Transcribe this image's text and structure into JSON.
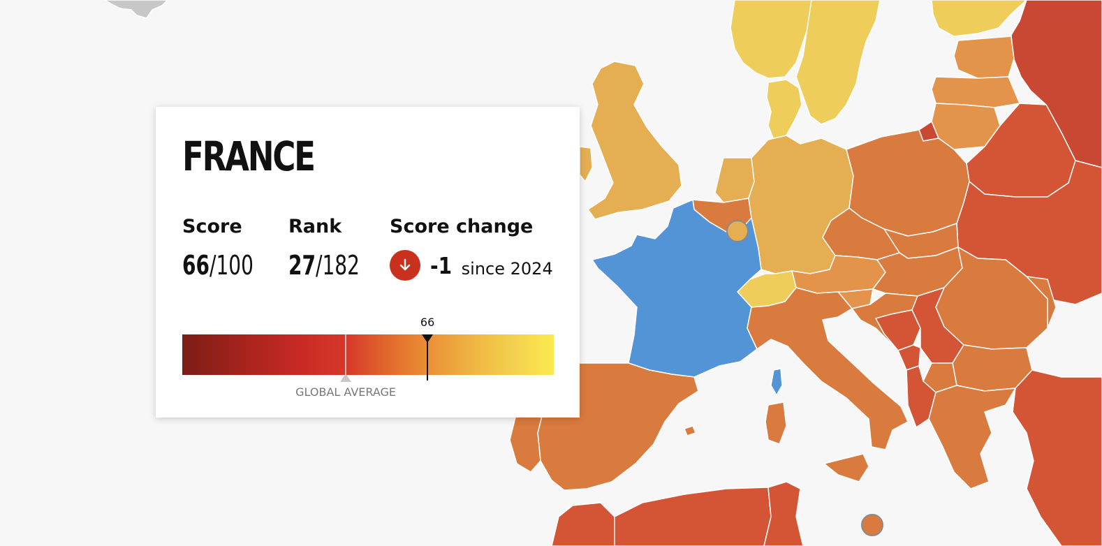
{
  "map": {
    "background_color": "#f7f7f7",
    "border_color": "#ffffff",
    "selected_country": "France",
    "legend_colors": {
      "yellow": "#efcd5b",
      "light_orange": "#e6ae52",
      "orange": "#e3944a",
      "dark_orange": "#d97a3e",
      "red_orange": "#d45535",
      "red": "#c84834",
      "selected": "#5294d6"
    },
    "markers": [
      {
        "country": "Luxembourg",
        "color": "#e6ae52"
      },
      {
        "country": "Malta",
        "color": "#d97a3e"
      }
    ]
  },
  "card": {
    "country_name": "FRANCE",
    "score": {
      "label": "Score",
      "value": "66",
      "max": "/100"
    },
    "rank": {
      "label": "Rank",
      "value": "27",
      "total": "/182"
    },
    "score_change": {
      "label": "Score change",
      "value": "-1",
      "since": "since 2024",
      "direction_icon": "arrow-down-icon",
      "icon_color": "#c9311f"
    },
    "scale": {
      "min": 0,
      "max": 100,
      "country_score": 66,
      "country_score_label": "66",
      "global_average_label": "GLOBAL AVERAGE",
      "global_average_value": 44
    }
  }
}
